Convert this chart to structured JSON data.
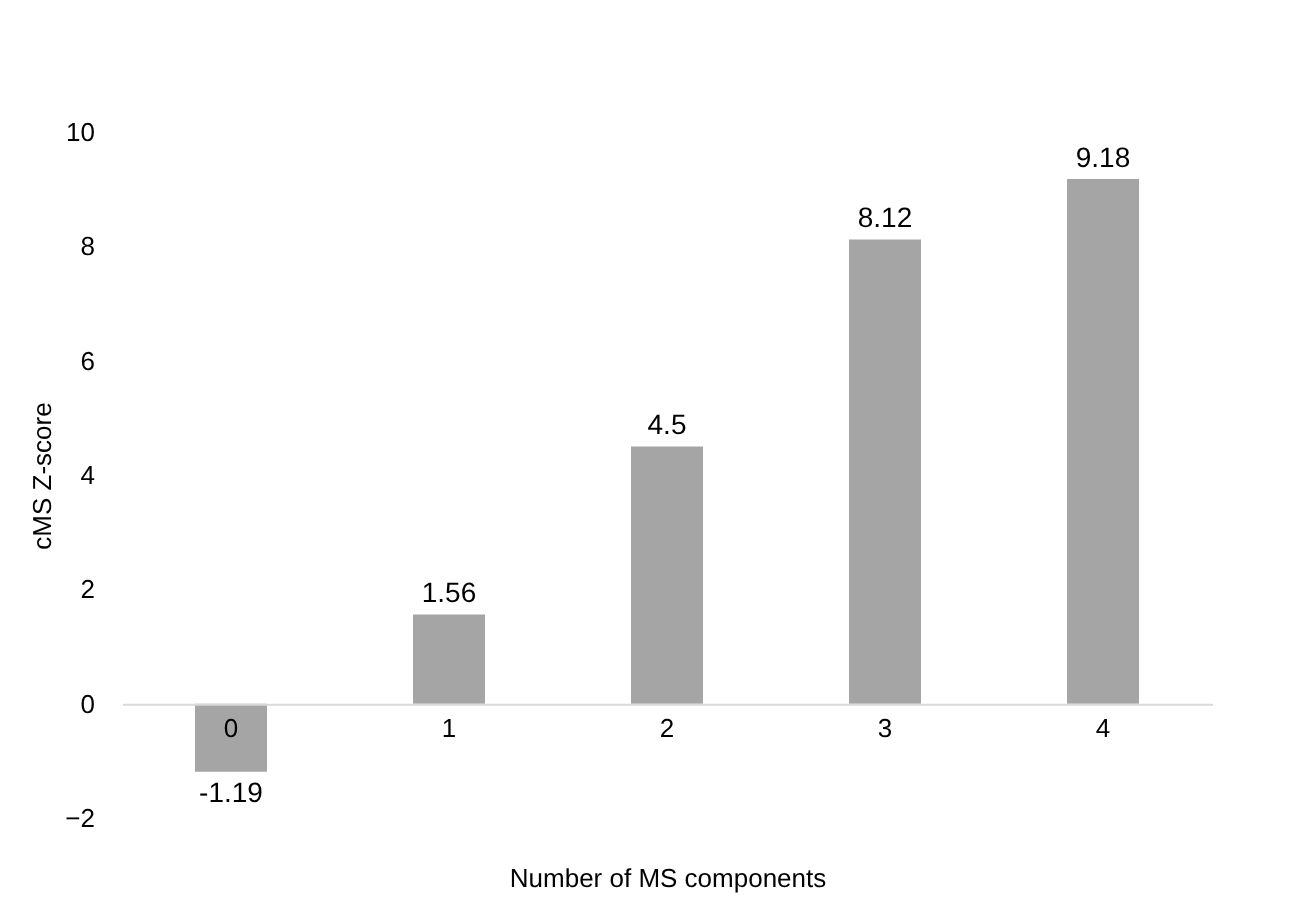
{
  "chart_data": {
    "type": "bar",
    "xlabel": "Number of MS components",
    "ylabel": "cMS Z-score",
    "categories": [
      "0",
      "1",
      "2",
      "3",
      "4"
    ],
    "values": [
      -1.19,
      1.56,
      4.5,
      8.12,
      9.18
    ],
    "color": "#a5a5a5",
    "ylim": [
      -2,
      10
    ],
    "yticks": [
      -2,
      0,
      2,
      4,
      6,
      8,
      10
    ],
    "grid": false,
    "data_labels": true
  }
}
